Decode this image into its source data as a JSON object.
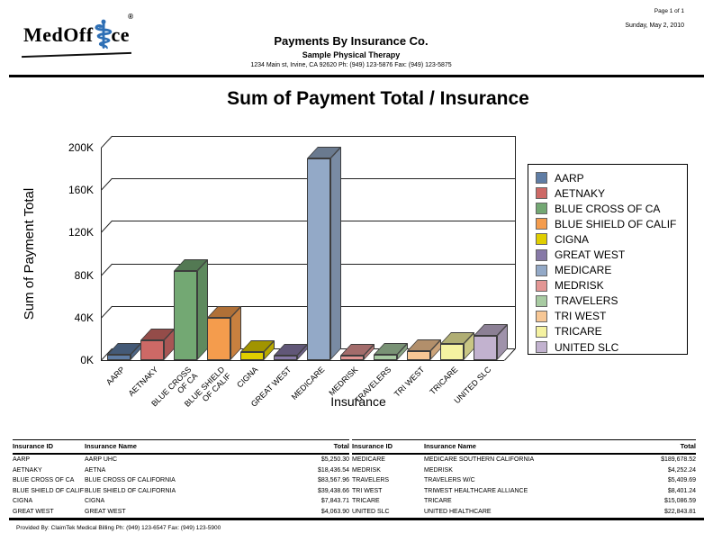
{
  "page": {
    "page_label": "Page 1 of 1",
    "date": "Sunday, May 2, 2010",
    "footer_text": "Provided By: ClaimTek Medical Billing Ph: (949) 123-6547 Fax: (949) 123-5900"
  },
  "header": {
    "logo_part1": "MedOff",
    "logo_part2": "ce",
    "caduceus_icon": "⚕",
    "registered_mark": "®",
    "report_title": "Payments By Insurance Co.",
    "practice_name": "Sample Physical Therapy",
    "practice_address": "1234 Main st, Irvine, CA 92620 Ph: (949) 123-5876 Fax: (949) 123-5875"
  },
  "chart_data": {
    "type": "bar",
    "projection": "3d",
    "title": "Sum of Payment Total / Insurance",
    "xlabel": "Insurance",
    "ylabel": "Sum of Payment Total",
    "ylim": [
      0,
      200000
    ],
    "ytick_step": 40000,
    "ytick_labels": [
      "0K",
      "40K",
      "80K",
      "120K",
      "160K",
      "200K"
    ],
    "grid": true,
    "legend_position": "right",
    "categories": [
      "AARP",
      "AETNAKY",
      "BLUE CROSS OF CA",
      "BLUE SHIELD OF CALIF",
      "CIGNA",
      "GREAT WEST",
      "MEDICARE",
      "MEDRISK",
      "TRAVELERS",
      "TRI WEST",
      "TRICARE",
      "UNITED SLC"
    ],
    "category_axis_labels": [
      "AARP",
      "AETNAKY",
      "BLUE CROSS\nOF CA",
      "BLUE SHIELD\nOF CALIF",
      "CIGNA",
      "GREAT WEST",
      "MEDICARE",
      "MEDRISK",
      "TRAVELERS",
      "TRI WEST",
      "TRICARE",
      "UNITED SLC"
    ],
    "values": [
      5250.3,
      18436.54,
      83567.96,
      39438.66,
      7843.71,
      4063.9,
      189678.52,
      4252.24,
      5409.69,
      8401.24,
      15086.59,
      22843.81
    ],
    "colors": [
      "#5F7DA5",
      "#CD6966",
      "#73A873",
      "#F49C4D",
      "#E0CE00",
      "#8779A7",
      "#93A9C7",
      "#E39694",
      "#A8CBA2",
      "#F7C795",
      "#F5F2A1",
      "#C2B2CF"
    ]
  },
  "tables": {
    "headers": [
      "Insurance ID",
      "Insurance Name",
      "Total"
    ],
    "left_rows": [
      [
        "AARP",
        "AARP UHC",
        "$5,250.30"
      ],
      [
        "AETNAKY",
        "AETNA",
        "$18,436.54"
      ],
      [
        "BLUE CROSS OF CA",
        "BLUE CROSS OF CALIFORNIA",
        "$83,567.96"
      ],
      [
        "BLUE SHIELD OF CALIF",
        "BLUE SHIELD OF CALIFORNIA",
        "$39,438.66"
      ],
      [
        "CIGNA",
        "CIGNA",
        "$7,843.71"
      ],
      [
        "GREAT WEST",
        "GREAT WEST",
        "$4,063.90"
      ]
    ],
    "right_rows": [
      [
        "MEDICARE",
        "MEDICARE SOUTHERN CALIFORNIA",
        "$189,678.52"
      ],
      [
        "MEDRISK",
        "MEDRISK",
        "$4,252.24"
      ],
      [
        "TRAVELERS",
        "TRAVELERS W/C",
        "$5,409.69"
      ],
      [
        "TRI WEST",
        "TRIWEST HEALTHCARE ALLIANCE",
        "$8,401.24"
      ],
      [
        "TRICARE",
        "TRICARE",
        "$15,086.59"
      ],
      [
        "UNITED SLC",
        "UNITED HEALTHCARE",
        "$22,843.81"
      ]
    ]
  }
}
